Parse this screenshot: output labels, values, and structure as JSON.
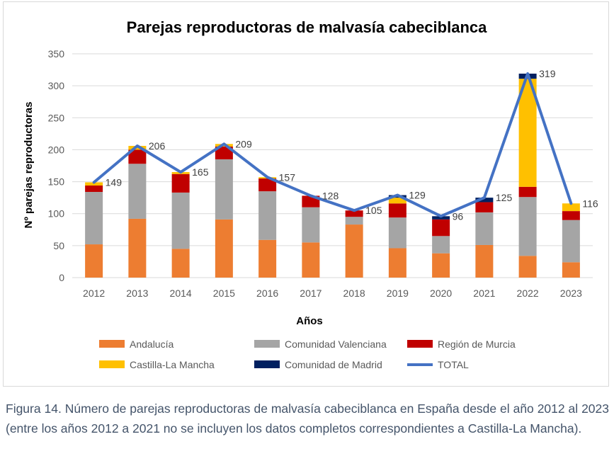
{
  "chart_data": {
    "type": "bar",
    "stacked": true,
    "title": "Parejas reproductoras de malvasía cabeciblanca",
    "xlabel": "Años",
    "ylabel": "Nº parejas reproductoras",
    "ylim": [
      0,
      350
    ],
    "yticks": [
      "0",
      "50",
      "100",
      "150",
      "200",
      "250",
      "300",
      "350"
    ],
    "grid": true,
    "legend_position": "bottom",
    "categories": [
      "2012",
      "2013",
      "2014",
      "2015",
      "2016",
      "2017",
      "2018",
      "2019",
      "2020",
      "2021",
      "2022",
      "2023"
    ],
    "series": [
      {
        "name": "Andalucía",
        "color": "#ed7d31",
        "values": [
          52,
          92,
          45,
          91,
          59,
          55,
          83,
          46,
          38,
          51,
          34,
          24
        ]
      },
      {
        "name": "Comunidad Valenciana",
        "color": "#a5a5a5",
        "values": [
          82,
          86,
          88,
          94,
          76,
          55,
          12,
          48,
          27,
          51,
          92,
          66
        ]
      },
      {
        "name": "Región de Murcia",
        "color": "#c00000",
        "values": [
          10,
          22,
          29,
          20,
          20,
          18,
          10,
          22,
          26,
          16,
          16,
          14
        ]
      },
      {
        "name": "Castilla-La Mancha",
        "color": "#ffc000",
        "values": [
          5,
          6,
          3,
          4,
          2,
          0,
          0,
          9,
          0,
          0,
          169,
          12
        ]
      },
      {
        "name": "Comunidad de Madrid",
        "color": "#002060",
        "values": [
          0,
          0,
          0,
          0,
          0,
          0,
          0,
          4,
          5,
          7,
          8,
          0
        ]
      }
    ],
    "total": {
      "name": "TOTAL",
      "color": "#4472c4",
      "values": [
        149,
        206,
        165,
        209,
        157,
        128,
        105,
        129,
        96,
        125,
        319,
        116
      ]
    },
    "total_labels": [
      "149",
      "206",
      "165",
      "209",
      "157",
      "128",
      "105",
      "129",
      "96",
      "125",
      "319",
      "116"
    ]
  },
  "caption": "Figura 14. Número de parejas reproductoras de malvasía cabeciblanca en España desde el año 2012 al 2023 (entre los años 2012 a 2021 no se incluyen los datos completos correspondientes a Castilla-La Mancha)."
}
